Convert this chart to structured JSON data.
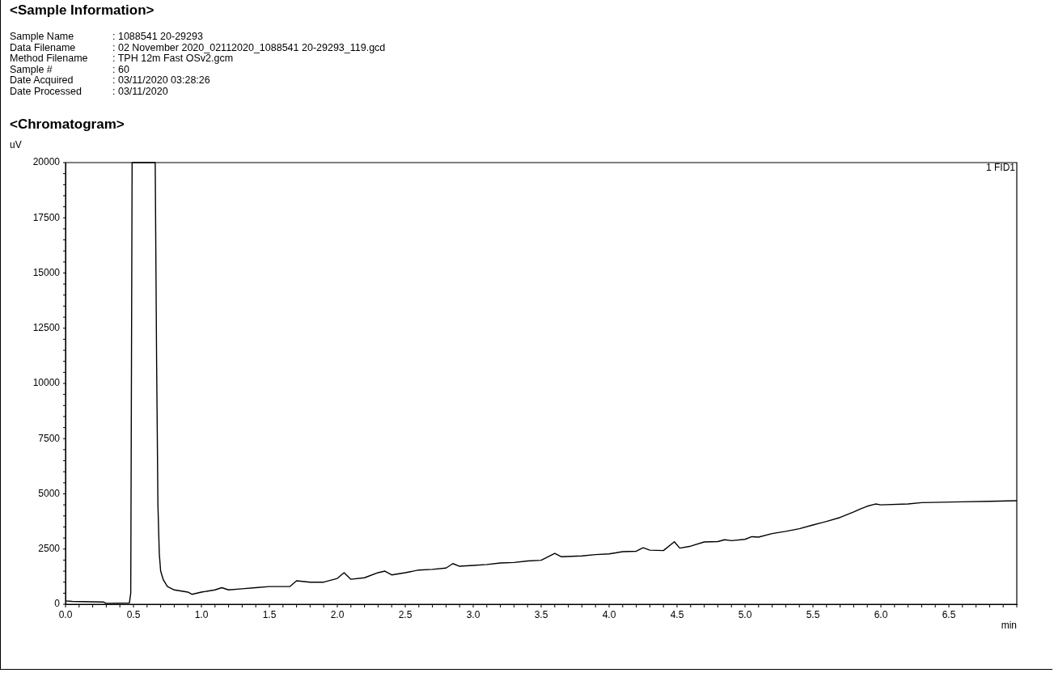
{
  "chart_data": {
    "type": "line",
    "title": "<Sample Information>",
    "subtitle": "<Chromatogram>",
    "annotations": [
      "Sample Name : 1088541 20-29293",
      "Data Filename : 02 November 2020_02112020_1088541 20-29293_119.gcd",
      "Method Filename : TPH 12m Fast OSv2.gcm",
      "Sample # : 60",
      "Date Acquired : 03/11/2020 03:28:26",
      "Date Processed : 03/11/2020"
    ],
    "xlabel": "min",
    "ylabel": "uV",
    "xlim": [
      0,
      7
    ],
    "xticks": [
      {
        "value": 0,
        "label": "0.0"
      },
      {
        "value": 0.5,
        "label": "0.5"
      },
      {
        "value": 1,
        "label": "1.0"
      },
      {
        "value": 1.5,
        "label": "1.5"
      },
      {
        "value": 2,
        "label": "2.0"
      },
      {
        "value": 2.5,
        "label": "2.5"
      },
      {
        "value": 3,
        "label": "3.0"
      },
      {
        "value": 3.5,
        "label": "3.5"
      },
      {
        "value": 4,
        "label": "4.0"
      },
      {
        "value": 4.5,
        "label": "4.5"
      },
      {
        "value": 5,
        "label": "5.0"
      },
      {
        "value": 5.5,
        "label": "5.5"
      },
      {
        "value": 6,
        "label": "6.0"
      },
      {
        "value": 6.5,
        "label": "6.5"
      }
    ],
    "ylim": [
      0,
      20000
    ],
    "yticks": [
      0,
      2500,
      5000,
      7500,
      10000,
      12500,
      15000,
      17500,
      20000
    ],
    "grid": false,
    "legend": false,
    "marker": "none",
    "line_style": "solid",
    "series": [
      {
        "name": "1 FID1",
        "color": "#000000",
        "x": [
          0,
          0.05,
          0.28,
          0.3,
          0.47,
          0.48,
          0.49,
          0.66,
          0.67,
          0.68,
          0.69,
          0.7,
          0.72,
          0.75,
          0.8,
          0.9,
          0.93,
          1.0,
          1.1,
          1.15,
          1.2,
          1.3,
          1.4,
          1.5,
          1.65,
          1.7,
          1.8,
          1.9,
          2.0,
          2.05,
          2.1,
          2.2,
          2.3,
          2.35,
          2.4,
          2.5,
          2.6,
          2.7,
          2.8,
          2.85,
          2.9,
          3.0,
          3.1,
          3.2,
          3.3,
          3.4,
          3.5,
          3.6,
          3.65,
          3.8,
          3.9,
          4.0,
          4.1,
          4.2,
          4.25,
          4.3,
          4.4,
          4.48,
          4.52,
          4.6,
          4.7,
          4.8,
          4.85,
          4.9,
          5.0,
          5.05,
          5.1,
          5.2,
          5.3,
          5.4,
          5.5,
          5.6,
          5.7,
          5.8,
          5.85,
          5.9,
          5.96,
          6.0,
          6.2,
          6.3,
          6.6,
          6.8,
          7.0
        ],
        "values": [
          150,
          130,
          100,
          40,
          60,
          500,
          20000,
          20000,
          11200,
          4500,
          2300,
          1500,
          1100,
          800,
          650,
          550,
          450,
          550,
          650,
          750,
          650,
          700,
          750,
          800,
          800,
          1060,
          1000,
          1000,
          1170,
          1430,
          1130,
          1200,
          1430,
          1500,
          1330,
          1430,
          1550,
          1580,
          1640,
          1840,
          1720,
          1760,
          1800,
          1870,
          1890,
          1960,
          1990,
          2300,
          2150,
          2190,
          2250,
          2280,
          2380,
          2400,
          2560,
          2450,
          2430,
          2830,
          2540,
          2630,
          2820,
          2840,
          2920,
          2880,
          2940,
          3060,
          3040,
          3200,
          3300,
          3420,
          3590,
          3750,
          3930,
          4180,
          4320,
          4440,
          4540,
          4500,
          4540,
          4600,
          4640,
          4660,
          4690
        ]
      }
    ]
  }
}
